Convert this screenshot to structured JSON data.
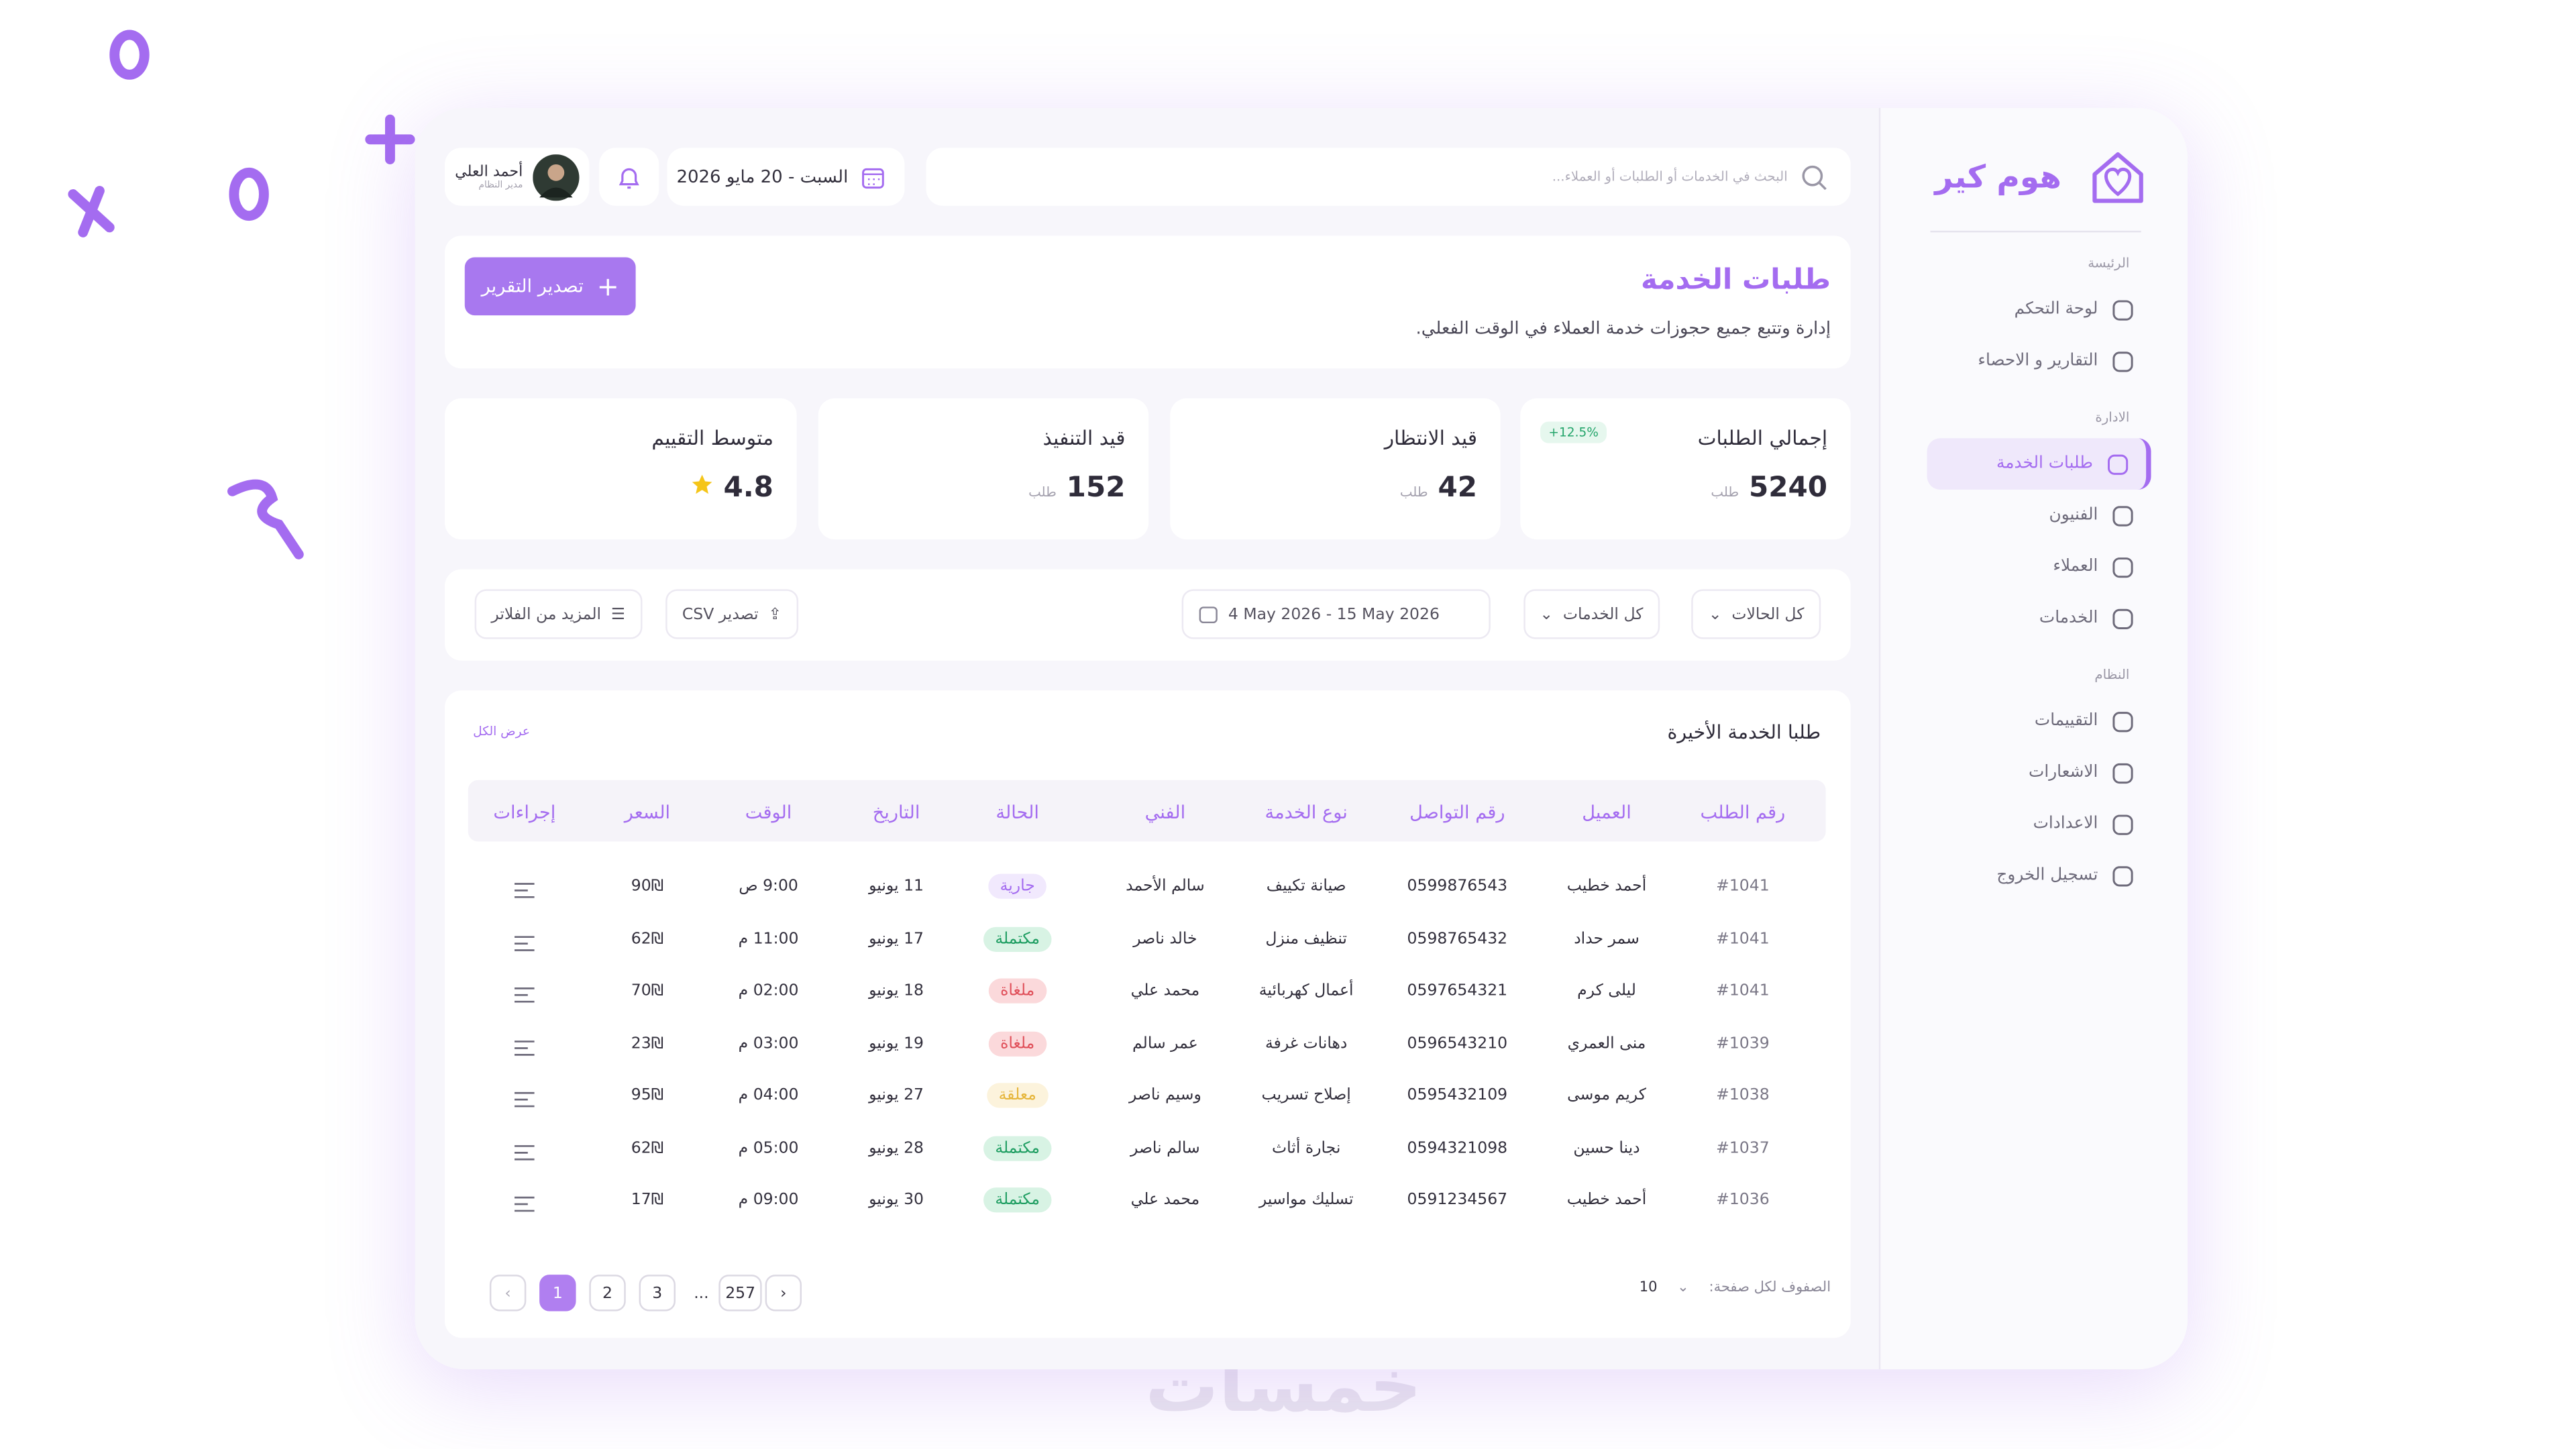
{
  "brand": "هوم كير",
  "sidebar": [
    {
      "label": "الرئيسة",
      "items": [
        "لوحة التحكم",
        "التقارير و الاحصاء"
      ]
    },
    {
      "label": "الادارة",
      "items": [
        "طلبات الخدمة",
        "الفنيون",
        "العملاء",
        "الخدمات"
      ]
    },
    {
      "label": "النظام",
      "items": [
        "التقييمات",
        "الاشعارات",
        "الاعدادات",
        "تسجيل الخروج"
      ]
    }
  ],
  "header": {
    "search_placeholder": "البحث في الخدمات أو الطلبات أو العملاء...",
    "date": "السبت - 20 مايو 2026",
    "user_name": "أحمد العلي",
    "user_role": "مدير النظام"
  },
  "page": {
    "title": "طلبات الخدمة",
    "subtitle": "إدارة وتتبع جميع حجوزات خدمة العملاء في الوقت الفعلي.",
    "export_button": "تصدير التقرير"
  },
  "stats": [
    {
      "label": "إجمالي الطلبات",
      "value": 5240,
      "unit": "طلب",
      "badge": "+12.5%"
    },
    {
      "label": "قيد الانتظار",
      "value": 42,
      "unit": "طلب"
    },
    {
      "label": "قيد التنفيذ",
      "value": 152,
      "unit": "طلب"
    },
    {
      "label": "متوسط التقييم",
      "value": 4.8
    }
  ],
  "filters": {
    "status": "كل الحالات",
    "services": "كل الخدمات",
    "date_range": "4 May 2026 - 15 May 2026",
    "export_csv": "تصدير CSV",
    "more_filters": "المزيد من الفلاتر"
  },
  "table": {
    "title": "طلبا الخدمة الأخيرة",
    "view_all": "عرض الكل",
    "columns": [
      "رقم الطلب",
      "العميل",
      "رقم التواصل",
      "نوع الخدمة",
      "الفني",
      "الحالة",
      "التاريخ",
      "الوقت",
      "السعر",
      "إجراءات"
    ],
    "rows": [
      [
        "#1041",
        "أحمد خطيب",
        "0599876543",
        "صيانة تكييف",
        "سالم الأحمد",
        {
          "label": "جارية",
          "color": "#a46cf0",
          "bg": "#f1e9fd"
        },
        "11 يونيو",
        "9:00 ص",
        "90₪"
      ],
      [
        "#1041",
        "سمر حداد",
        "0598765432",
        "تنظيف منزل",
        "خالد ناصر",
        {
          "label": "مكتملة",
          "color": "#1f9e62",
          "bg": "#d8f3e4"
        },
        "17 يونيو",
        "11:00 م",
        "62₪"
      ],
      [
        "#1041",
        "ليلى كرم",
        "0597654321",
        "أعمال كهربائية",
        "محمد علي",
        {
          "label": "ملغاة",
          "color": "#e0505a",
          "bg": "#fbd9db"
        },
        "18 يونيو",
        "02:00 م",
        "70₪"
      ],
      [
        "#1039",
        "منى العمري",
        "0596543210",
        "دهانات غرفة",
        "عمر سالم",
        {
          "label": "ملغاة",
          "color": "#e0505a",
          "bg": "#fbd9db"
        },
        "19 يونيو",
        "03:00 م",
        "23₪"
      ],
      [
        "#1038",
        "كريم موسى",
        "0595432109",
        "إصلاح تسريب",
        "وسيم ناصر",
        {
          "label": "معلقة",
          "color": "#e6b53a",
          "bg": "#fcf3dc"
        },
        "27 يونيو",
        "04:00 م",
        "95₪"
      ],
      [
        "#1037",
        "دينا حسين",
        "0594321098",
        "نجارة أثاث",
        "سالم ناصر",
        {
          "label": "مكتملة",
          "color": "#1f9e62",
          "bg": "#d8f3e4"
        },
        "28 يونيو",
        "05:00 م",
        "62₪"
      ],
      [
        "#1036",
        "أحمد خطيب",
        "0591234567",
        "تسليك مواسير",
        "محمد علي",
        {
          "label": "مكتملة",
          "color": "#1f9e62",
          "bg": "#d8f3e4"
        },
        "30 يونيو",
        "09:00 م",
        "17₪"
      ]
    ]
  },
  "pagination": {
    "rows_per_page_label": "الصفوف لكل صفحة:",
    "rows_per_page": "10",
    "pages": [
      "1",
      "2",
      "3",
      "...",
      "257"
    ],
    "current": "1"
  },
  "watermark": "خمسات"
}
